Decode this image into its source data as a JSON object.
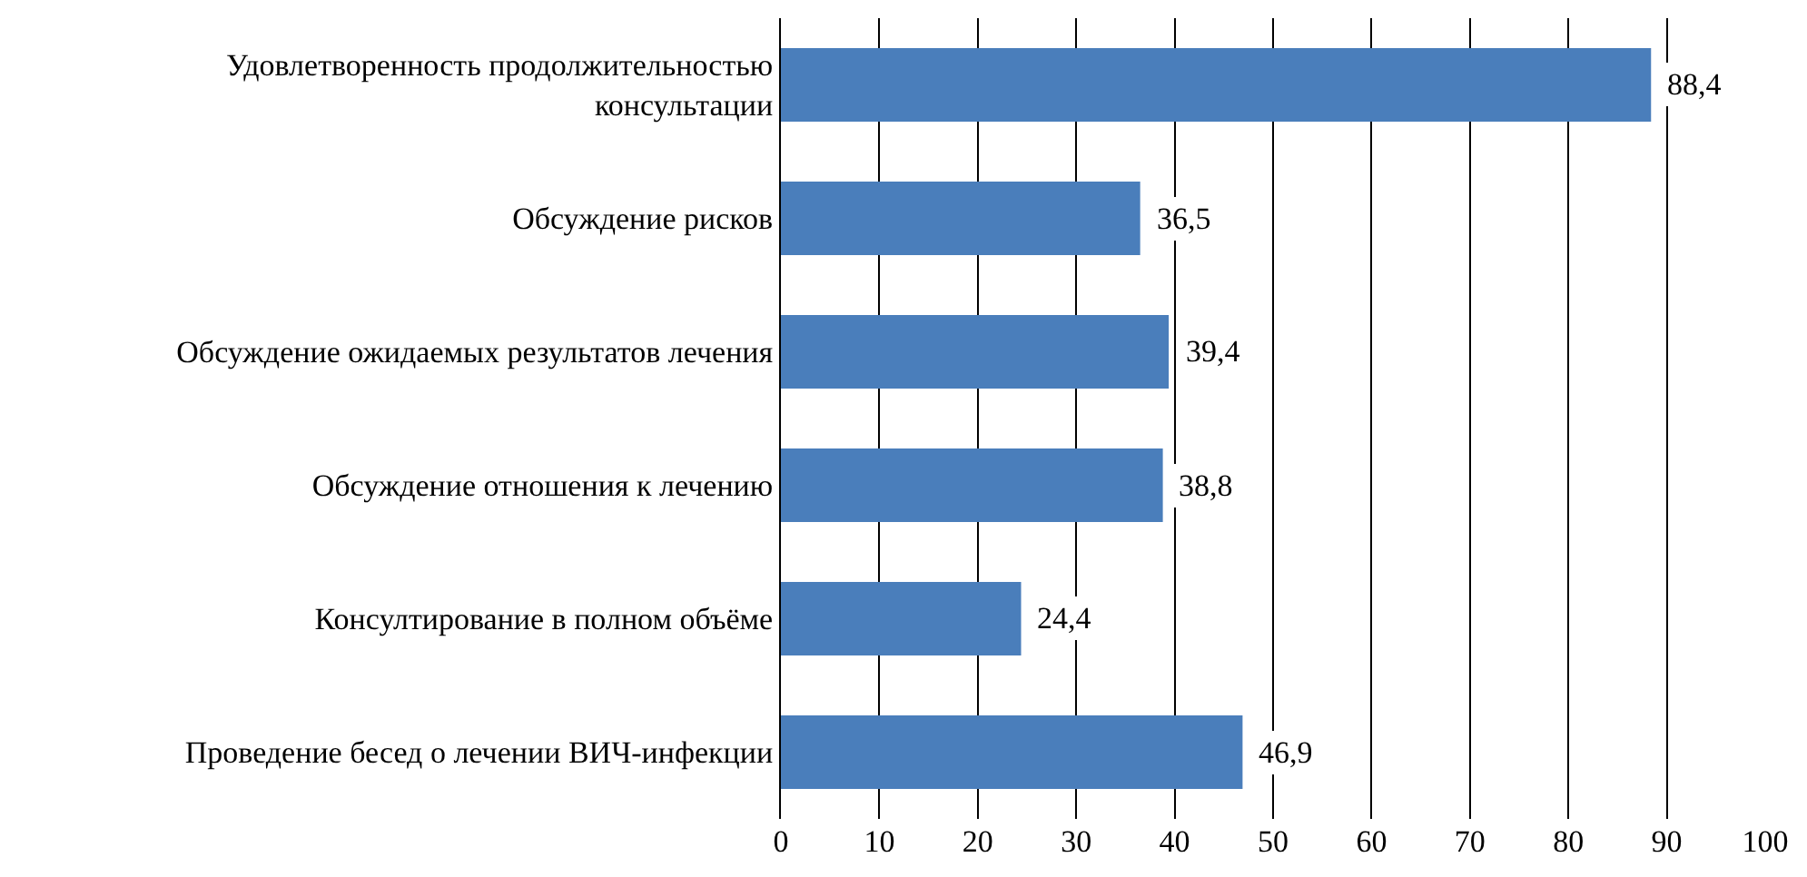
{
  "chart_data": {
    "type": "bar",
    "orientation": "horizontal",
    "categories": [
      "Удовлетворенность продолжительностью консультации",
      "Обсуждение рисков",
      "Обсуждение ожидаемых результатов лечения",
      "Обсуждение отношения к лечению",
      "Консултирование в полном объёме",
      "Проведение бесед о лечении ВИЧ-инфекции"
    ],
    "values": [
      88.4,
      36.5,
      39.4,
      38.8,
      24.4,
      46.9
    ],
    "value_labels": [
      "88,4",
      "36,5",
      "39,4",
      "38,8",
      "24,4",
      "46,9"
    ],
    "color": "#4a7ebb",
    "xlim": [
      0,
      100
    ],
    "xticks": [
      0,
      10,
      20,
      30,
      40,
      50,
      60,
      70,
      80,
      90,
      100
    ],
    "grid": "x",
    "legend": false
  }
}
